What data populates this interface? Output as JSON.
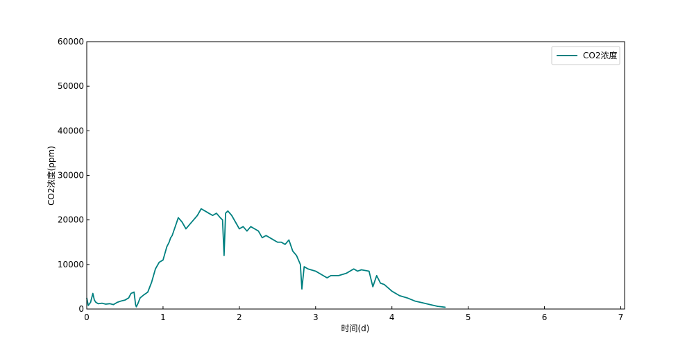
{
  "chart_data": {
    "type": "line",
    "title": "",
    "xlabel": "时间(d)",
    "ylabel": "CO2浓度(ppm)",
    "xlim": [
      0,
      7.05
    ],
    "ylim": [
      0,
      60000
    ],
    "xticks": [
      "0",
      "1",
      "2",
      "3",
      "4",
      "5",
      "6",
      "7"
    ],
    "yticks": [
      "0",
      "10000",
      "20000",
      "30000",
      "40000",
      "50000",
      "60000"
    ],
    "grid": false,
    "legend_position": "top-right",
    "color": "#008080",
    "series": [
      {
        "name": "CO2浓度",
        "x": [
          0.0,
          0.02,
          0.05,
          0.08,
          0.1,
          0.12,
          0.15,
          0.2,
          0.25,
          0.3,
          0.35,
          0.4,
          0.45,
          0.5,
          0.55,
          0.58,
          0.62,
          0.64,
          0.65,
          0.67,
          0.7,
          0.75,
          0.8,
          0.85,
          0.9,
          0.95,
          1.0,
          1.05,
          1.08,
          1.1,
          1.12,
          1.15,
          1.2,
          1.25,
          1.3,
          1.35,
          1.4,
          1.45,
          1.5,
          1.55,
          1.6,
          1.65,
          1.7,
          1.75,
          1.78,
          1.8,
          1.82,
          1.85,
          1.9,
          1.95,
          2.0,
          2.05,
          2.1,
          2.15,
          2.2,
          2.25,
          2.3,
          2.35,
          2.4,
          2.45,
          2.5,
          2.55,
          2.6,
          2.65,
          2.7,
          2.75,
          2.8,
          2.82,
          2.85,
          2.9,
          3.0,
          3.1,
          3.15,
          3.2,
          3.3,
          3.4,
          3.5,
          3.55,
          3.6,
          3.7,
          3.75,
          3.8,
          3.85,
          3.9,
          4.0,
          4.1,
          4.2,
          4.3,
          4.4,
          4.5,
          4.6,
          4.7
        ],
        "values": [
          2500,
          800,
          1500,
          3500,
          2000,
          1500,
          1200,
          1300,
          1100,
          1200,
          1000,
          1500,
          1800,
          2000,
          2500,
          3500,
          3800,
          1000,
          500,
          1200,
          2500,
          3200,
          3800,
          6000,
          9000,
          10500,
          11000,
          14000,
          15000,
          16000,
          16500,
          18000,
          20500,
          19500,
          18000,
          19000,
          20000,
          21000,
          22500,
          22000,
          21500,
          21000,
          21500,
          20500,
          20000,
          12000,
          21500,
          22000,
          21000,
          19500,
          18000,
          18500,
          17500,
          18500,
          18000,
          17500,
          16000,
          16500,
          16000,
          15500,
          15000,
          15000,
          14500,
          15500,
          13000,
          12000,
          10000,
          4500,
          9500,
          9000,
          8500,
          7500,
          7000,
          7500,
          7500,
          8000,
          9000,
          8500,
          8800,
          8500,
          5000,
          7500,
          5800,
          5500,
          4000,
          3000,
          2500,
          1800,
          1400,
          1000,
          600,
          400
        ]
      }
    ]
  }
}
